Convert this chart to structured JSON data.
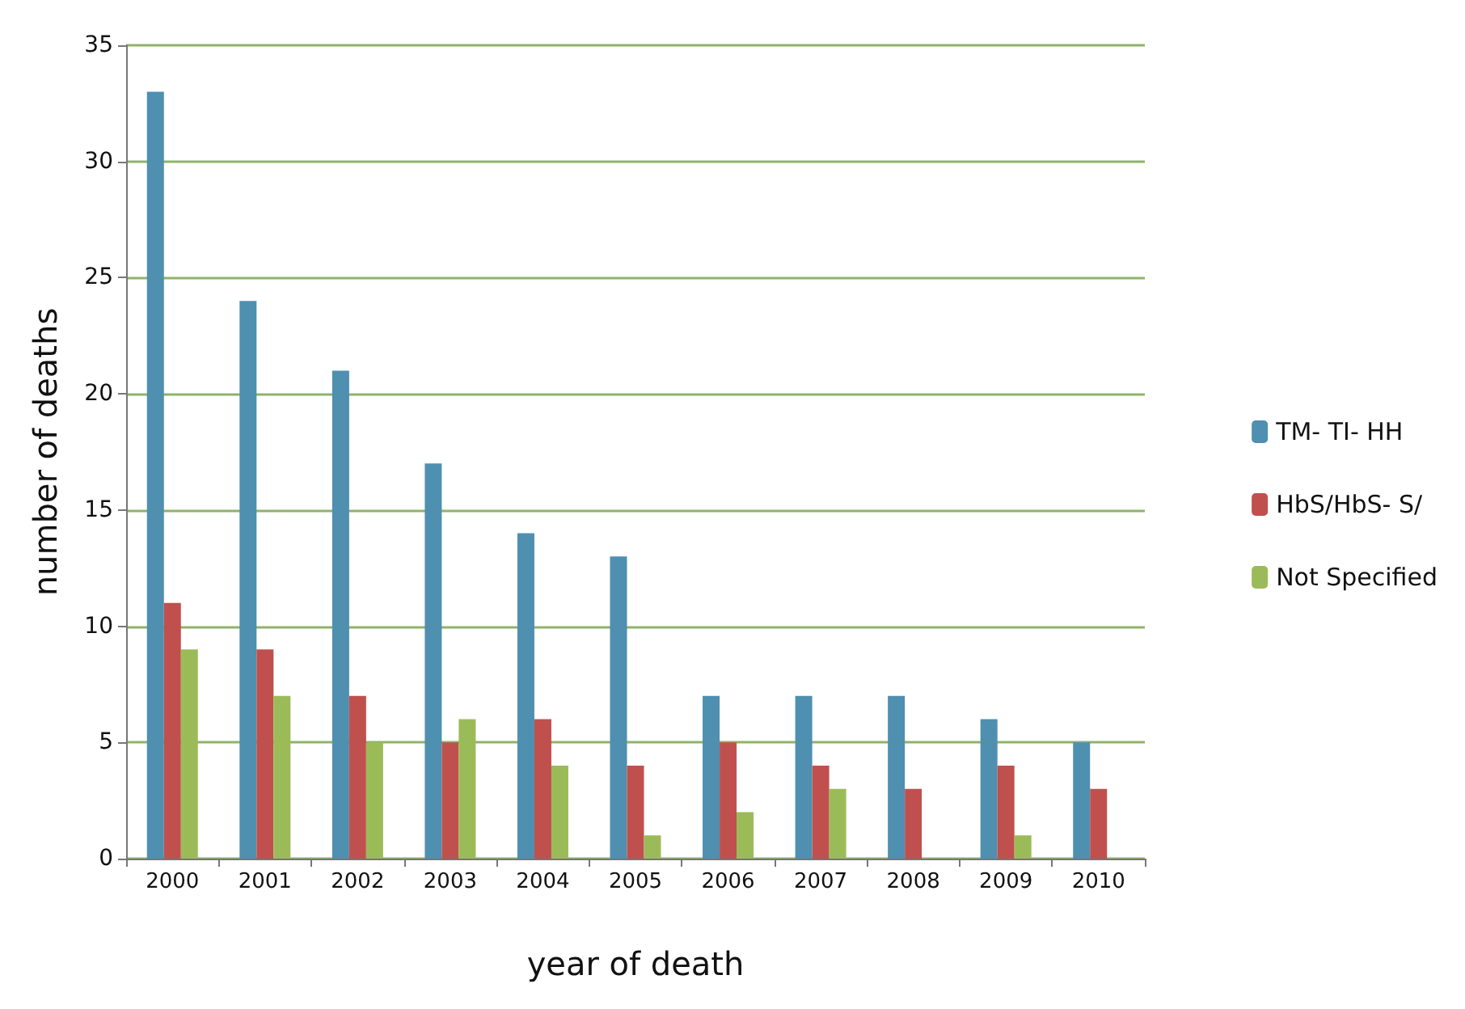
{
  "chart_data": {
    "type": "bar",
    "xlabel": "year of death",
    "ylabel": "number of deaths",
    "categories": [
      "2000",
      "2001",
      "2002",
      "2003",
      "2004",
      "2005",
      "2006",
      "2007",
      "2008",
      "2009",
      "2010"
    ],
    "series": [
      {
        "name": "TM- TI- HH",
        "color": "#4f8fb0",
        "values": [
          33,
          24,
          21,
          17,
          14,
          13,
          7,
          7,
          7,
          6,
          5
        ]
      },
      {
        "name": "HbS/HbS- S/",
        "color": "#c0504d",
        "values": [
          11,
          9,
          7,
          5,
          6,
          4,
          5,
          4,
          3,
          4,
          3
        ]
      },
      {
        "name": "Not Specified",
        "color": "#9bbb59",
        "values": [
          9,
          7,
          5,
          6,
          4,
          1,
          2,
          3,
          null,
          1,
          null
        ]
      }
    ],
    "ylim": [
      0,
      35
    ],
    "yticks": [
      0,
      5,
      10,
      15,
      20,
      25,
      30,
      35
    ],
    "grid": "y",
    "legend": "right"
  }
}
